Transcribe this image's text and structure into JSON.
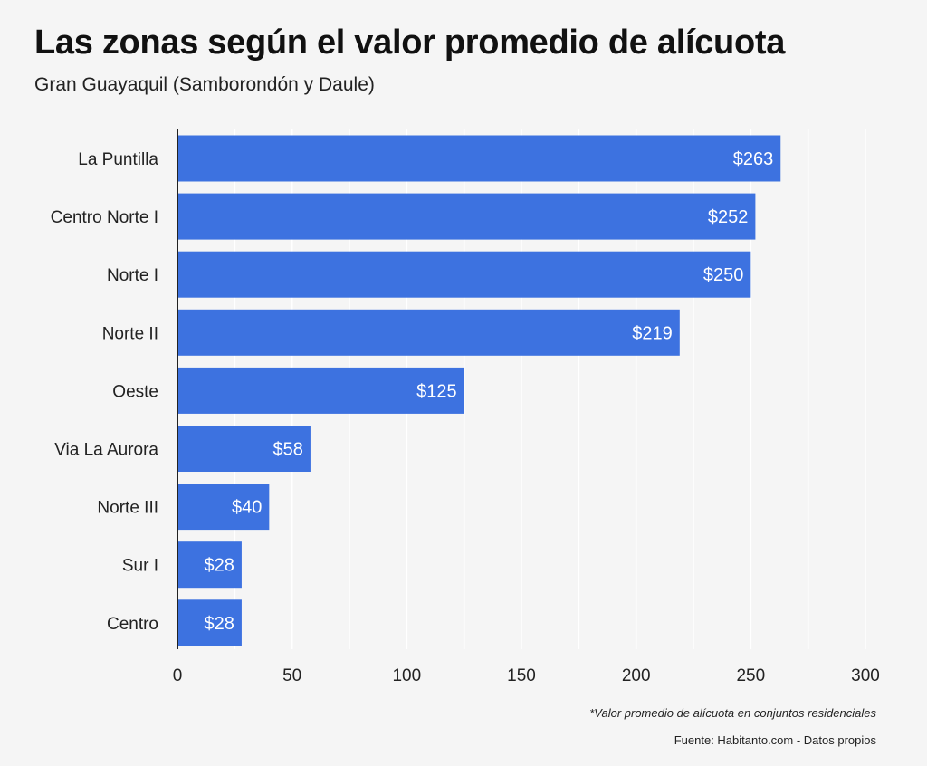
{
  "header": {
    "title": "Las zonas según el valor promedio de alícuota",
    "subtitle": "Gran Guayaquil (Samborondón y Daule)"
  },
  "footer": {
    "footnote": "*Valor promedio de alícuota en conjuntos residenciales",
    "source": "Fuente: Habitanto.com - Datos propios"
  },
  "colors": {
    "bar": "#3d72e0",
    "grid": "#ffffff",
    "axis": "#222222",
    "background": "#f5f5f5"
  },
  "chart_data": {
    "type": "bar",
    "orientation": "horizontal",
    "title": "Las zonas según el valor promedio de alícuota",
    "subtitle": "Gran Guayaquil (Samborondón y Daule)",
    "categories": [
      "La Puntilla",
      "Centro Norte I",
      "Norte I",
      "Norte II",
      "Oeste",
      "Via La Aurora",
      "Norte III",
      "Sur I",
      "Centro"
    ],
    "values": [
      263,
      252,
      250,
      219,
      125,
      58,
      40,
      28,
      28
    ],
    "data_labels": [
      "$263",
      "$252",
      "$250",
      "$219",
      "$125",
      "$58",
      "$40",
      "$28",
      "$28"
    ],
    "xlim": [
      0,
      300
    ],
    "x_ticks": [
      "0",
      "50",
      "100",
      "150",
      "200",
      "250",
      "300"
    ],
    "xlabel": "",
    "ylabel": "",
    "grid": true,
    "legend": "none"
  }
}
